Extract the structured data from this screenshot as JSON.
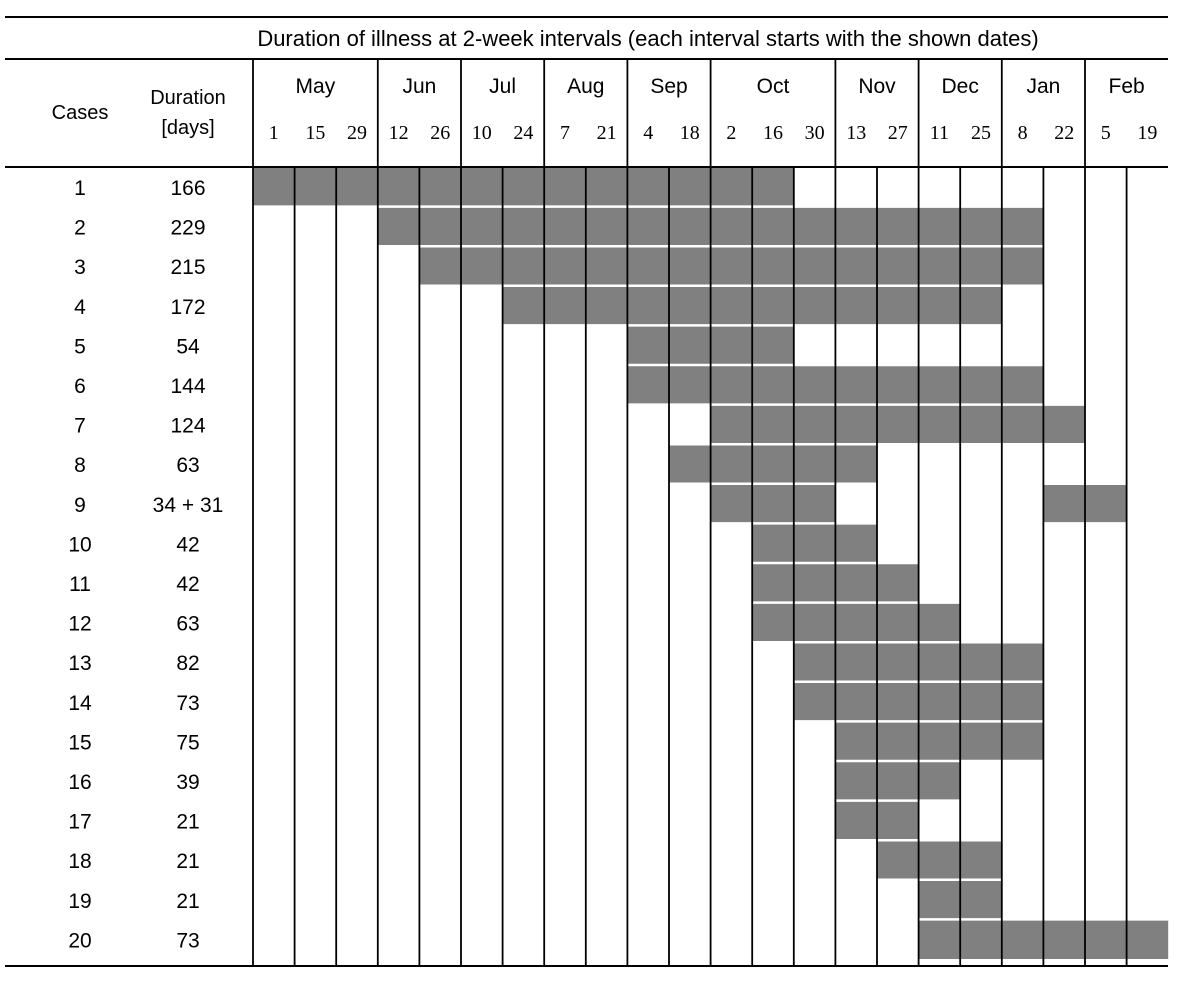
{
  "chart_data": {
    "type": "table",
    "title": "Duration of illness at 2-week intervals (each interval starts with the shown dates)",
    "col_cases": "Cases",
    "col_duration_line1": "Duration",
    "col_duration_line2": "[days]",
    "months": [
      {
        "label": "May",
        "span": 3
      },
      {
        "label": "Jun",
        "span": 2
      },
      {
        "label": "Jul",
        "span": 2
      },
      {
        "label": "Aug",
        "span": 2
      },
      {
        "label": "Sep",
        "span": 2
      },
      {
        "label": "Oct",
        "span": 3
      },
      {
        "label": "Nov",
        "span": 2
      },
      {
        "label": "Dec",
        "span": 2
      },
      {
        "label": "Jan",
        "span": 2
      },
      {
        "label": "Feb",
        "span": 2
      }
    ],
    "intervals": [
      "1",
      "15",
      "29",
      "12",
      "26",
      "10",
      "24",
      "7",
      "21",
      "4",
      "18",
      "2",
      "16",
      "30",
      "13",
      "27",
      "11",
      "25",
      "8",
      "22",
      "5",
      "19"
    ],
    "fill_color": "#808080",
    "rows": [
      {
        "case": "1",
        "duration": "166",
        "shaded": [
          [
            0,
            12
          ]
        ]
      },
      {
        "case": "2",
        "duration": "229",
        "shaded": [
          [
            3,
            18
          ]
        ]
      },
      {
        "case": "3",
        "duration": "215",
        "shaded": [
          [
            4,
            18
          ]
        ]
      },
      {
        "case": "4",
        "duration": "172",
        "shaded": [
          [
            6,
            17
          ]
        ]
      },
      {
        "case": "5",
        "duration": "54",
        "shaded": [
          [
            9,
            12
          ]
        ]
      },
      {
        "case": "6",
        "duration": "144",
        "shaded": [
          [
            9,
            18
          ]
        ]
      },
      {
        "case": "7",
        "duration": "124",
        "shaded": [
          [
            11,
            19
          ]
        ]
      },
      {
        "case": "8",
        "duration": "63",
        "shaded": [
          [
            10,
            14
          ]
        ]
      },
      {
        "case": "9",
        "duration": "34 + 31",
        "shaded": [
          [
            11,
            13
          ],
          [
            19,
            20
          ]
        ]
      },
      {
        "case": "10",
        "duration": "42",
        "shaded": [
          [
            12,
            14
          ]
        ]
      },
      {
        "case": "11",
        "duration": "42",
        "shaded": [
          [
            12,
            15
          ]
        ]
      },
      {
        "case": "12",
        "duration": "63",
        "shaded": [
          [
            12,
            16
          ]
        ]
      },
      {
        "case": "13",
        "duration": "82",
        "shaded": [
          [
            13,
            18
          ]
        ]
      },
      {
        "case": "14",
        "duration": "73",
        "shaded": [
          [
            13,
            18
          ]
        ]
      },
      {
        "case": "15",
        "duration": "75",
        "shaded": [
          [
            14,
            18
          ]
        ]
      },
      {
        "case": "16",
        "duration": "39",
        "shaded": [
          [
            14,
            16
          ]
        ]
      },
      {
        "case": "17",
        "duration": "21",
        "shaded": [
          [
            14,
            15
          ]
        ]
      },
      {
        "case": "18",
        "duration": "21",
        "shaded": [
          [
            15,
            17
          ]
        ]
      },
      {
        "case": "19",
        "duration": "21",
        "shaded": [
          [
            16,
            17
          ]
        ]
      },
      {
        "case": "20",
        "duration": "73",
        "shaded": [
          [
            16,
            21
          ]
        ]
      }
    ]
  }
}
